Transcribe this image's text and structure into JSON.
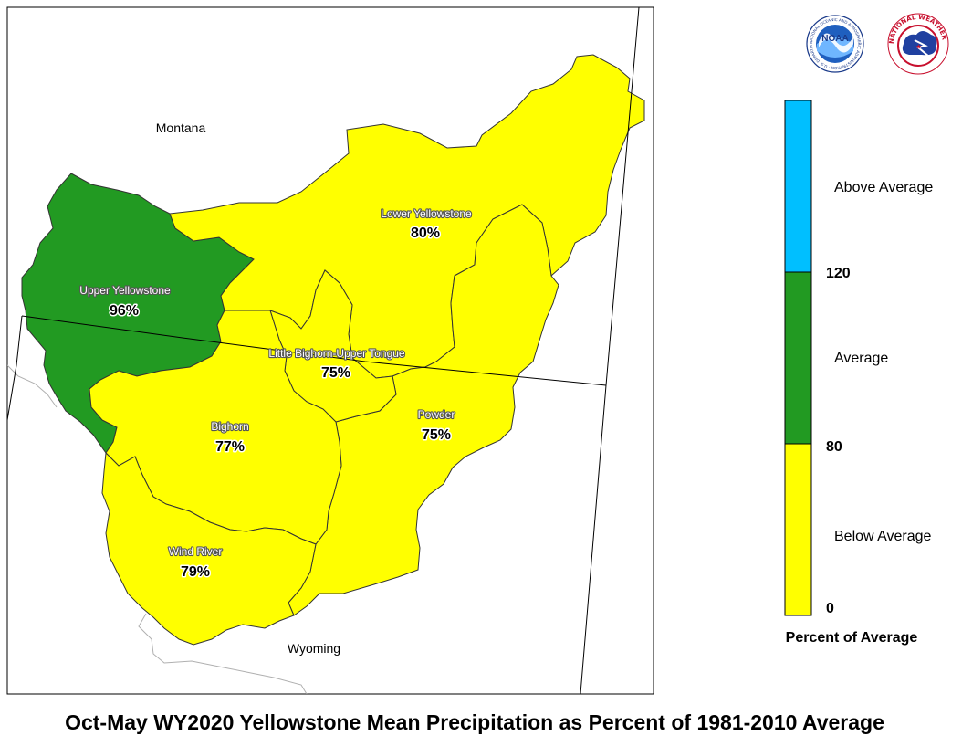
{
  "title": "Oct-May WY2020 Yellowstone Mean Precipitation as Percent of 1981-2010 Average",
  "states": {
    "montana": "Montana",
    "wyoming": "Wyoming"
  },
  "regions": [
    {
      "name": "Upper Yellowstone",
      "percent": "96%",
      "category": "Average"
    },
    {
      "name": "Lower Yellowstone",
      "percent": "80%",
      "category": "Below Average"
    },
    {
      "name": "Little Bighorn-Upper Tongue",
      "percent": "75%",
      "category": "Below Average"
    },
    {
      "name": "Bighorn",
      "percent": "77%",
      "category": "Below Average"
    },
    {
      "name": "Powder",
      "percent": "75%",
      "category": "Below Average"
    },
    {
      "name": "Wind River",
      "percent": "79%",
      "category": "Below Average"
    }
  ],
  "legend": {
    "title": "Percent of Average",
    "categories": [
      {
        "label": "Above Average",
        "color": "#00bfff"
      },
      {
        "label": "Average",
        "color": "#229a22"
      },
      {
        "label": "Below Average",
        "color": "#ffff00"
      }
    ],
    "breaks": [
      "120",
      "80",
      "0"
    ]
  },
  "logos": {
    "noaa": {
      "text": "NOAA",
      "ring_text": "NATIONAL OCEANIC AND ATMOSPHERIC ADMINISTRATION · U.S. DEPARTMENT OF COMMERCE"
    },
    "nws": {
      "ring_text": "NATIONAL WEATHER SERVICE"
    }
  },
  "colors": {
    "average": "#229a22",
    "below_average": "#ffff00",
    "above_average": "#00bfff"
  }
}
